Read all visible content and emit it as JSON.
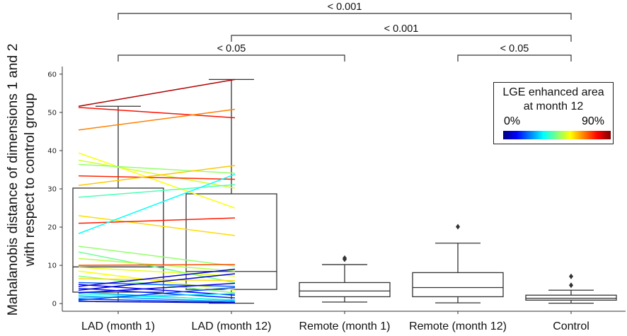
{
  "chart_data": {
    "type": "box",
    "ylabel_lines": [
      "Mahalanobis distance of dimensions 1 and 2",
      "with respect to control group"
    ],
    "ylim": [
      -2,
      62
    ],
    "yticks": [
      0,
      10,
      20,
      30,
      40,
      50,
      60
    ],
    "categories": [
      "LAD (month 1)",
      "LAD (month 12)",
      "Remote (month 1)",
      "Remote (month 12)",
      "Control"
    ],
    "boxes": [
      {
        "min": 0.5,
        "q1": 3.0,
        "median": 9.6,
        "q3": 30.2,
        "max": 51.6,
        "outliers": []
      },
      {
        "min": 0.1,
        "q1": 3.7,
        "median": 8.4,
        "q3": 28.7,
        "max": 58.6,
        "outliers": []
      },
      {
        "min": 0.4,
        "q1": 1.8,
        "median": 3.3,
        "q3": 5.5,
        "max": 10.2,
        "outliers": [
          11.6,
          11.9
        ]
      },
      {
        "min": 0.2,
        "q1": 1.8,
        "median": 4.2,
        "q3": 8.1,
        "max": 15.8,
        "outliers": [
          20.1
        ]
      },
      {
        "min": 0.1,
        "q1": 0.9,
        "median": 1.4,
        "q3": 2.2,
        "max": 3.5,
        "outliers": [
          4.8,
          7.1
        ]
      }
    ],
    "paired_lines": [
      {
        "m1": 51.6,
        "m12": 58.6,
        "lge": 0.95
      },
      {
        "m1": 51.3,
        "m12": 48.6,
        "lge": 0.86
      },
      {
        "m1": 45.4,
        "m12": 50.8,
        "lge": 0.75
      },
      {
        "m1": 39.4,
        "m12": 25.0,
        "lge": 0.62
      },
      {
        "m1": 37.5,
        "m12": 30.2,
        "lge": 0.58
      },
      {
        "m1": 36.4,
        "m12": 34.1,
        "lge": 0.52
      },
      {
        "m1": 33.4,
        "m12": 32.5,
        "lge": 0.84
      },
      {
        "m1": 30.9,
        "m12": 36.1,
        "lge": 0.68
      },
      {
        "m1": 27.8,
        "m12": 31.1,
        "lge": 0.45
      },
      {
        "m1": 23.0,
        "m12": 17.8,
        "lge": 0.66
      },
      {
        "m1": 21.0,
        "m12": 22.4,
        "lge": 0.85
      },
      {
        "m1": 18.3,
        "m12": 33.8,
        "lge": 0.38
      },
      {
        "m1": 15.0,
        "m12": 9.8,
        "lge": 0.52
      },
      {
        "m1": 13.5,
        "m12": 5.5,
        "lge": 0.48
      },
      {
        "m1": 11.8,
        "m12": 8.5,
        "lge": 0.55
      },
      {
        "m1": 10.0,
        "m12": 10.2,
        "lge": 0.8
      },
      {
        "m1": 9.5,
        "m12": 7.2,
        "lge": 0.6
      },
      {
        "m1": 8.5,
        "m12": 3.5,
        "lge": 0.62
      },
      {
        "m1": 7.2,
        "m12": 2.8,
        "lge": 0.5
      },
      {
        "m1": 6.5,
        "m12": 6.0,
        "lge": 0.66
      },
      {
        "m1": 5.5,
        "m12": 4.5,
        "lge": 0.22
      },
      {
        "m1": 5.0,
        "m12": 2.2,
        "lge": 0.12
      },
      {
        "m1": 4.5,
        "m12": 9.0,
        "lge": 0.08
      },
      {
        "m1": 4.0,
        "m12": 1.5,
        "lge": 0.15
      },
      {
        "m1": 3.5,
        "m12": 7.8,
        "lge": 0.06
      },
      {
        "m1": 3.0,
        "m12": 0.8,
        "lge": 0.3
      },
      {
        "m1": 2.8,
        "m12": 5.3,
        "lge": 0.1
      },
      {
        "m1": 2.5,
        "m12": 1.0,
        "lge": 0.42
      },
      {
        "m1": 2.0,
        "m12": 0.5,
        "lge": 0.28
      },
      {
        "m1": 1.5,
        "m12": 2.6,
        "lge": 0.35
      },
      {
        "m1": 1.2,
        "m12": 0.3,
        "lge": 0.18
      },
      {
        "m1": 0.9,
        "m12": 4.2,
        "lge": 0.2
      },
      {
        "m1": 0.6,
        "m12": 0.2,
        "lge": 0.05
      }
    ],
    "brackets": [
      {
        "from": 0,
        "to": 4,
        "label": "< 0.001"
      },
      {
        "from": 1,
        "to": 4,
        "label": "< 0.001"
      },
      {
        "from": 0,
        "to": 2,
        "label": "< 0.05"
      },
      {
        "from": 3,
        "to": 4,
        "label": "< 0.05"
      }
    ],
    "colorbar": {
      "title_lines": [
        "LGE enhanced area",
        "at month 12"
      ],
      "min_label": "0%",
      "max_label": "90%",
      "colormap": "jet"
    }
  }
}
